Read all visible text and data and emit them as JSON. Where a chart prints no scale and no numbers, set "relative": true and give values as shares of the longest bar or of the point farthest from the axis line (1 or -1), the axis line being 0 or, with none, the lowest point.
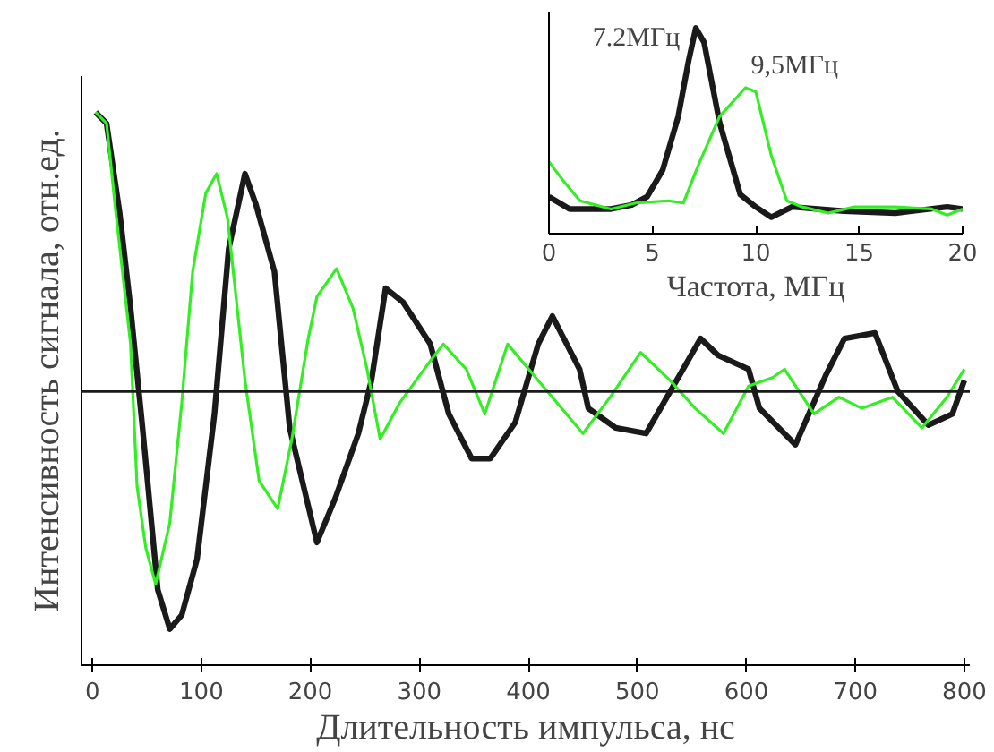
{
  "chart_data": [
    {
      "type": "line",
      "relative": true,
      "xlabel": "Длительность импульса, нс",
      "ylabel": "Интенсивность сигнала, отн.ед.",
      "xlim": [
        -10,
        805
      ],
      "xticks": [
        0,
        100,
        200,
        300,
        400,
        500,
        600,
        700,
        800
      ],
      "tick_labels": "x",
      "grid": false,
      "marker": "none",
      "line_style": "solid",
      "ref_lines": [
        {
          "axis": "y",
          "value": 0,
          "color": "#1a1a1a"
        }
      ],
      "series": [
        {
          "color": "#1a1a1a",
          "x": [
            3,
            13,
            25,
            35,
            46,
            60,
            71,
            82,
            96,
            112,
            125,
            140,
            150,
            167,
            181,
            206,
            223,
            244,
            256,
            269,
            285,
            310,
            327,
            348,
            365,
            388,
            409,
            422,
            447,
            455,
            480,
            508,
            536,
            558,
            574,
            602,
            612,
            645,
            673,
            690,
            718,
            739,
            767,
            789,
            800
          ],
          "values": [
            1.0,
            0.96,
            0.64,
            0.3,
            -0.13,
            -0.71,
            -0.85,
            -0.8,
            -0.6,
            -0.08,
            0.51,
            0.78,
            0.67,
            0.43,
            -0.13,
            -0.54,
            -0.38,
            -0.15,
            0.04,
            0.37,
            0.32,
            0.17,
            -0.08,
            -0.24,
            -0.24,
            -0.11,
            0.17,
            0.27,
            0.08,
            -0.06,
            -0.13,
            -0.15,
            0.04,
            0.19,
            0.13,
            0.08,
            -0.06,
            -0.19,
            0.06,
            0.19,
            0.21,
            0.0,
            -0.12,
            -0.08,
            0.04
          ]
        },
        {
          "color": "#33ee22",
          "x": [
            3,
            13,
            21,
            35,
            41,
            49,
            58,
            71,
            82,
            92,
            104,
            114,
            124,
            140,
            153,
            170,
            183,
            198,
            206,
            224,
            239,
            252,
            264,
            282,
            310,
            322,
            343,
            360,
            381,
            409,
            450,
            475,
            503,
            530,
            553,
            579,
            602,
            624,
            635,
            662,
            685,
            706,
            734,
            761,
            784,
            800
          ],
          "values": [
            1.0,
            0.96,
            0.66,
            0.17,
            -0.34,
            -0.56,
            -0.69,
            -0.47,
            -0.04,
            0.43,
            0.71,
            0.78,
            0.62,
            0.04,
            -0.32,
            -0.42,
            -0.17,
            0.19,
            0.34,
            0.44,
            0.3,
            0.08,
            -0.17,
            -0.04,
            0.11,
            0.17,
            0.08,
            -0.08,
            0.17,
            0.04,
            -0.15,
            -0.02,
            0.14,
            0.04,
            -0.06,
            -0.15,
            0.02,
            0.05,
            0.08,
            -0.08,
            -0.02,
            -0.06,
            -0.02,
            -0.13,
            -0.02,
            0.08
          ]
        }
      ]
    },
    {
      "type": "line",
      "relative": true,
      "xlabel": "Частота, МГц",
      "xlim": [
        0,
        20
      ],
      "xticks": [
        0,
        5,
        10,
        15,
        20
      ],
      "tick_labels": "x",
      "grid": false,
      "marker": "none",
      "line_style": "solid",
      "annotations": [
        {
          "text": "7.2МГц",
          "x": 7.2,
          "y": 1.0
        },
        {
          "text": "9,5МГц",
          "x": 9.5,
          "y": 0.71
        }
      ],
      "series": [
        {
          "color": "#1a1a1a",
          "x": [
            0,
            1,
            3,
            4,
            4.75,
            5.5,
            6.25,
            6.75,
            7.1,
            7.5,
            8.25,
            9.25,
            10,
            10.75,
            11.75,
            14.25,
            16.75,
            19.25,
            20
          ],
          "values": [
            0.18,
            0.12,
            0.12,
            0.14,
            0.18,
            0.31,
            0.57,
            0.84,
            1.0,
            0.93,
            0.54,
            0.19,
            0.13,
            0.08,
            0.13,
            0.11,
            0.1,
            0.13,
            0.12
          ]
        },
        {
          "color": "#33ee22",
          "x": [
            0,
            0.75,
            1.5,
            3,
            4.25,
            5.75,
            6.5,
            7.25,
            8.25,
            9.5,
            10,
            10.75,
            11.5,
            12.25,
            13.5,
            14.75,
            16.75,
            18.5,
            19.25,
            20
          ],
          "values": [
            0.35,
            0.25,
            0.16,
            0.12,
            0.15,
            0.16,
            0.15,
            0.34,
            0.57,
            0.71,
            0.69,
            0.38,
            0.16,
            0.13,
            0.1,
            0.13,
            0.13,
            0.12,
            0.09,
            0.12
          ]
        }
      ]
    }
  ]
}
